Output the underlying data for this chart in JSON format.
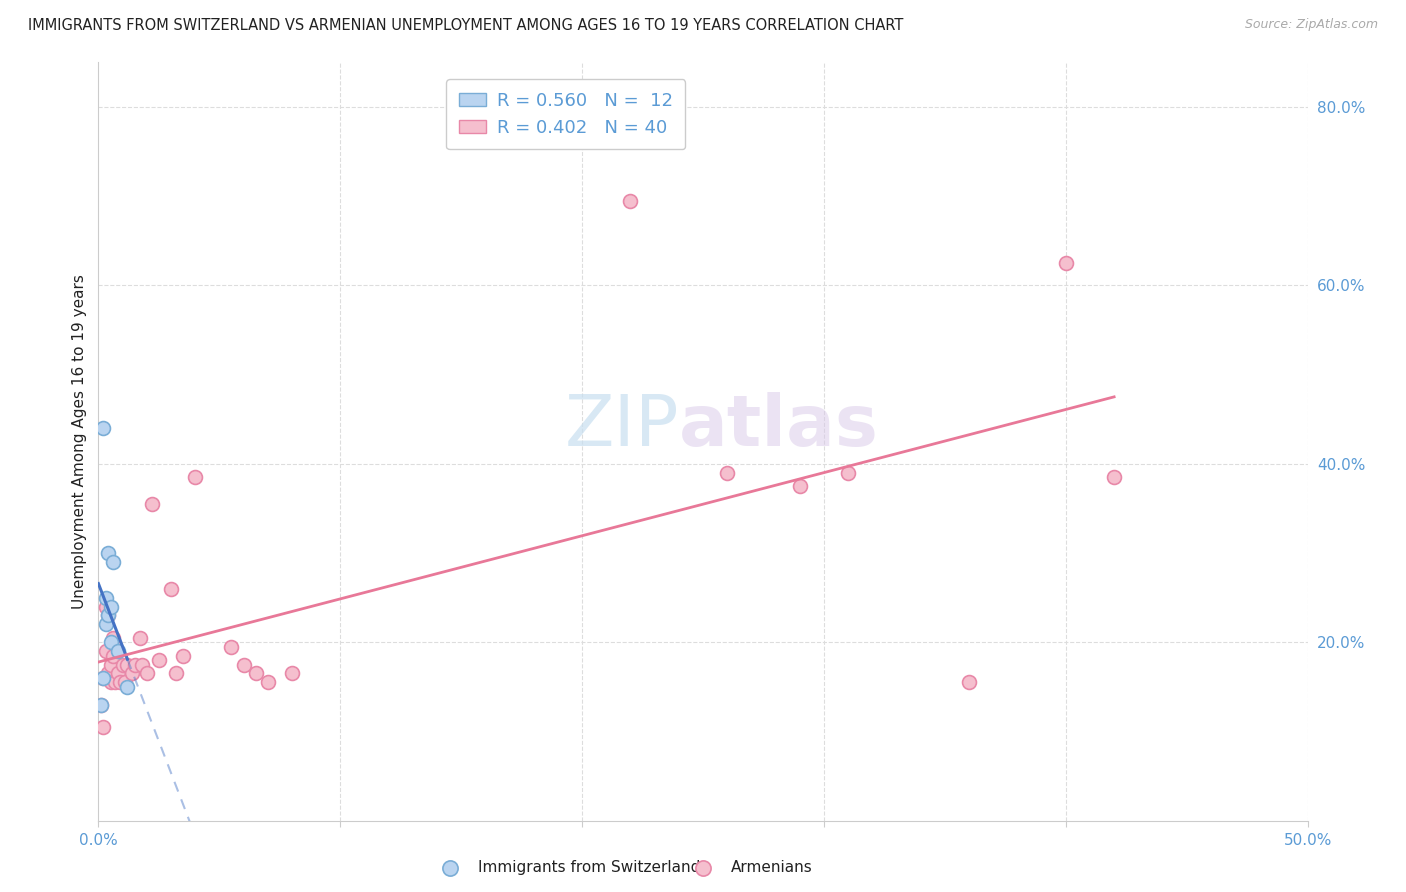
{
  "title": "IMMIGRANTS FROM SWITZERLAND VS ARMENIAN UNEMPLOYMENT AMONG AGES 16 TO 19 YEARS CORRELATION CHART",
  "source": "Source: ZipAtlas.com",
  "ylabel": "Unemployment Among Ages 16 to 19 years",
  "xlim": [
    0.0,
    0.5
  ],
  "ylim": [
    0.0,
    0.85
  ],
  "xticks_visible": [
    0.0,
    0.1,
    0.2,
    0.3,
    0.4,
    0.5
  ],
  "xtick_labels_show": [
    "0.0%",
    "",
    "",
    "",
    "",
    "50.0%"
  ],
  "yticks_right": [
    0.2,
    0.4,
    0.6,
    0.8
  ],
  "ytick_labels_right": [
    "20.0%",
    "40.0%",
    "60.0%",
    "80.0%"
  ],
  "swiss_x": [
    0.001,
    0.002,
    0.002,
    0.003,
    0.003,
    0.004,
    0.004,
    0.005,
    0.005,
    0.006,
    0.008,
    0.012
  ],
  "swiss_y": [
    0.13,
    0.16,
    0.44,
    0.22,
    0.25,
    0.23,
    0.3,
    0.2,
    0.24,
    0.29,
    0.19,
    0.15
  ],
  "armenian_x": [
    0.001,
    0.002,
    0.002,
    0.003,
    0.003,
    0.004,
    0.004,
    0.005,
    0.005,
    0.006,
    0.006,
    0.007,
    0.008,
    0.009,
    0.01,
    0.011,
    0.012,
    0.014,
    0.015,
    0.017,
    0.018,
    0.02,
    0.022,
    0.025,
    0.03,
    0.032,
    0.035,
    0.04,
    0.055,
    0.06,
    0.065,
    0.07,
    0.08,
    0.22,
    0.26,
    0.29,
    0.31,
    0.36,
    0.4,
    0.42
  ],
  "armenian_y": [
    0.13,
    0.16,
    0.105,
    0.24,
    0.19,
    0.23,
    0.165,
    0.175,
    0.155,
    0.185,
    0.205,
    0.155,
    0.165,
    0.155,
    0.175,
    0.155,
    0.175,
    0.165,
    0.175,
    0.205,
    0.175,
    0.165,
    0.355,
    0.18,
    0.26,
    0.165,
    0.185,
    0.385,
    0.195,
    0.175,
    0.165,
    0.155,
    0.165,
    0.695,
    0.39,
    0.375,
    0.39,
    0.155,
    0.625,
    0.385
  ],
  "swiss_color": "#bad4f0",
  "swiss_edge_color": "#7aadd6",
  "armenian_color": "#f5bfce",
  "armenian_edge_color": "#e888a8",
  "swiss_line_color": "#4472c4",
  "armenian_line_color": "#e87898",
  "swiss_R": "0.560",
  "swiss_N": "12",
  "armenian_R": "0.402",
  "armenian_N": "40",
  "watermark_zip": "ZIP",
  "watermark_atlas": "atlas",
  "legend_label_swiss": "Immigrants from Switzerland",
  "legend_label_armenian": "Armenians",
  "background_color": "#ffffff",
  "grid_color": "#dddddd",
  "title_color": "#222222",
  "axis_label_color": "#5b9bd5",
  "marker_size": 100
}
